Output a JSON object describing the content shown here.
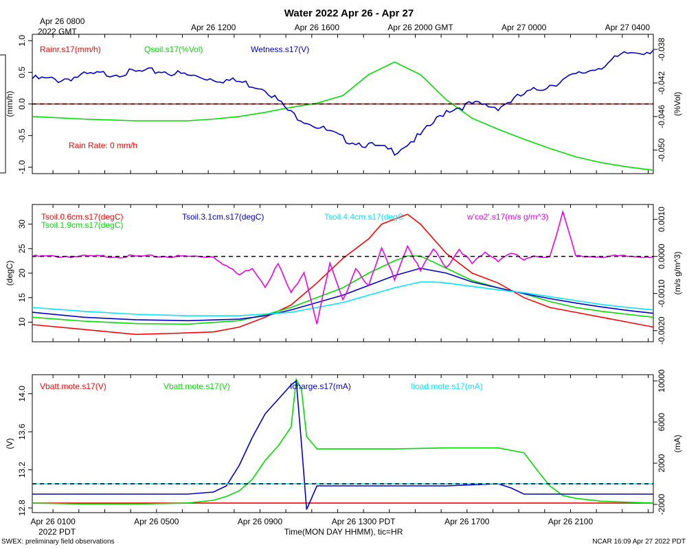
{
  "title": "Water 2022 Apr 26 - Apr 27",
  "footer_left": "SWEX: preliminary field observations",
  "footer_right": "NCAR 16:09 Apr 27 2022 PDT",
  "bottom_xlabel": "Time(MON DAY HHMM), tic=HR",
  "top_ticks": [
    {
      "t": 0.0,
      "label": "Apr 26 0800"
    },
    {
      "t": 4.0,
      "label": "Apr 26 1200"
    },
    {
      "t": 8.0,
      "label": "Apr 26 1600"
    },
    {
      "t": 12.0,
      "label": "Apr 26 2000 GMT"
    },
    {
      "t": 16.0,
      "label": "Apr 27 0000"
    },
    {
      "t": 20.0,
      "label": "Apr 27 0400"
    }
  ],
  "top_sublabel": "2022 GMT",
  "bottom_ticks": [
    {
      "t": 1.0,
      "label": "Apr 26 0100"
    },
    {
      "t": 5.0,
      "label": "Apr 26 0500"
    },
    {
      "t": 9.0,
      "label": "Apr 26 0900"
    },
    {
      "t": 13.0,
      "label": "Apr 26 1300 PDT"
    },
    {
      "t": 17.0,
      "label": "Apr 26 1700"
    },
    {
      "t": 21.0,
      "label": "Apr 26 2100"
    }
  ],
  "bottom_sublabel": "2022 PDT",
  "colors": {
    "red": "#ff0000",
    "green": "#00dd00",
    "blue": "#0000cc",
    "cyan": "#00e5ff",
    "magenta": "#ee00ee"
  },
  "chart_data": [
    {
      "type": "line",
      "panel": "water",
      "x_unit": "hours since Apr 26 0000 PDT",
      "xlim": [
        0.0,
        24.0
      ],
      "left_axis": {
        "label": "(mm/h)",
        "range": [
          -1.1,
          1.1
        ],
        "ticks": [
          1.0,
          0.5,
          0.0,
          -0.5,
          -1.0
        ],
        "tick_labels": [
          "1.0",
          "0.5",
          "0.0",
          "-0.5",
          "-1.0"
        ]
      },
      "right_axis": {
        "label": "(%Vol)",
        "range": [
          -0.0528,
          -0.0362
        ],
        "ticks": [
          -0.038,
          -0.042,
          -0.046,
          -0.05
        ],
        "tick_labels": [
          "-0.038",
          "-0.042",
          "-0.046",
          "-0.050"
        ]
      },
      "zero_line": 0.0,
      "annotation": "Rain Rate: 0 mm/h",
      "series": [
        {
          "name": "Rainr.s17(mm/h)",
          "color": "red",
          "axis": "left",
          "x": [
            0,
            24
          ],
          "y": [
            0,
            0
          ]
        },
        {
          "name": "Qsoil.s17(%Vol)",
          "color": "green",
          "axis": "right",
          "x": [
            0,
            2,
            4,
            6,
            7,
            8,
            9,
            10,
            11,
            12,
            13,
            14,
            15,
            16,
            17,
            18,
            19,
            20,
            21,
            22,
            23,
            24
          ],
          "y": [
            -0.046,
            -0.0463,
            -0.0465,
            -0.0465,
            -0.0463,
            -0.046,
            -0.0455,
            -0.0449,
            -0.0444,
            -0.0435,
            -0.041,
            -0.0395,
            -0.041,
            -0.044,
            -0.0462,
            -0.0475,
            -0.0487,
            -0.0498,
            -0.0508,
            -0.0515,
            -0.052,
            -0.0524
          ]
        },
        {
          "name": "Wetness.s17(V)",
          "color": "blue",
          "axis": "left",
          "x": [
            0,
            1,
            2,
            3,
            4,
            5,
            6,
            7,
            8,
            9,
            10,
            11,
            12,
            13,
            14,
            15,
            16,
            17,
            18,
            19,
            20,
            21,
            22,
            23,
            24
          ],
          "y": [
            0.4,
            0.38,
            0.45,
            0.48,
            0.5,
            0.52,
            0.45,
            0.4,
            0.35,
            0.25,
            -0.15,
            -0.35,
            -0.55,
            -0.65,
            -0.75,
            -0.5,
            -0.1,
            0.0,
            -0.05,
            0.15,
            0.3,
            0.45,
            0.6,
            0.8,
            0.85
          ]
        }
      ]
    },
    {
      "type": "line",
      "panel": "soil temperature",
      "x_unit": "hours since Apr 26 0000 PDT",
      "xlim": [
        0.0,
        24.0
      ],
      "left_axis": {
        "label": "(degC)",
        "range": [
          6.0,
          34.0
        ],
        "ticks": [
          30,
          25,
          20,
          15,
          10
        ],
        "tick_labels": [
          "30",
          "25",
          "20",
          "15",
          "10"
        ]
      },
      "right_axis": {
        "label": "(m/s g/m^3)",
        "range": [
          -0.0023,
          0.0014
        ],
        "ticks": [
          0.001,
          0.0,
          -0.001,
          -0.002
        ],
        "tick_labels": [
          "0.0010",
          "0.0000",
          "-0.0010",
          "-0.0020"
        ]
      },
      "zero_line": 0.0,
      "series": [
        {
          "name": "Tsoil.0.6cm.s17(degC)",
          "color": "red",
          "axis": "left",
          "x": [
            0,
            2,
            4,
            6,
            7,
            8,
            9,
            10,
            11,
            12,
            13,
            13.5,
            14,
            14.5,
            15,
            16,
            17,
            18,
            19,
            20,
            21,
            22,
            23,
            24
          ],
          "y": [
            9.5,
            8.5,
            7.5,
            7.8,
            8.0,
            9.0,
            11.0,
            13.5,
            18.0,
            23.0,
            27.0,
            30.0,
            31.0,
            32.0,
            30.0,
            24.0,
            20.0,
            18.0,
            15.0,
            13.0,
            12.0,
            11.0,
            10.0,
            9.0
          ]
        },
        {
          "name": "Tsoil.1.9cm.s17(degC)",
          "color": "green",
          "axis": "left",
          "x": [
            0,
            2,
            4,
            6,
            8,
            9,
            10,
            12,
            13,
            14,
            14.5,
            15,
            16,
            17,
            18,
            19,
            20,
            21,
            22,
            23,
            24
          ],
          "y": [
            11.0,
            10.2,
            9.7,
            9.6,
            10.3,
            11.5,
            13.0,
            17.0,
            20.0,
            22.5,
            23.5,
            23.5,
            21.0,
            18.5,
            17.0,
            15.8,
            14.2,
            13.0,
            12.2,
            11.6,
            11.0
          ]
        },
        {
          "name": "Tsoil.3.1cm.s17(degC)",
          "color": "blue",
          "axis": "left",
          "x": [
            0,
            2,
            4,
            6,
            8,
            9,
            10,
            12,
            13,
            14,
            15,
            16,
            17,
            18,
            19,
            20,
            21,
            22,
            23,
            24
          ],
          "y": [
            12.0,
            11.0,
            10.5,
            10.3,
            10.6,
            11.3,
            12.5,
            15.5,
            17.5,
            19.5,
            21.0,
            20.0,
            18.2,
            17.0,
            15.8,
            14.8,
            13.9,
            13.1,
            12.4,
            11.8
          ]
        },
        {
          "name": "Tsoil.4.4cm.s17(degC",
          "color": "cyan",
          "axis": "left",
          "x": [
            0,
            2,
            4,
            6,
            8,
            10,
            12,
            13,
            14,
            15,
            15.5,
            16,
            17,
            18,
            19,
            20,
            21,
            22,
            23,
            24
          ],
          "y": [
            13.0,
            12.2,
            11.6,
            11.3,
            11.3,
            12.0,
            14.0,
            15.5,
            17.0,
            18.2,
            18.2,
            18.0,
            17.3,
            16.6,
            16.0,
            15.2,
            14.4,
            13.6,
            13.0,
            12.5
          ]
        },
        {
          "name": "w'co2'.s17(m/s g/m^3)",
          "color": "magenta",
          "axis": "right",
          "x": [
            0,
            1,
            2,
            3,
            4,
            5,
            6,
            7,
            8,
            8.5,
            9,
            9.5,
            10,
            10.5,
            11,
            11.5,
            12,
            12.5,
            13,
            13.5,
            14,
            14.5,
            15,
            15.5,
            16,
            16.5,
            17,
            17.5,
            18,
            18.5,
            19,
            19.5,
            20,
            20.5,
            21,
            22,
            23,
            24
          ],
          "y": [
            0.0,
            0.0,
            0.0,
            0.0,
            0.0,
            0.0,
            0.0,
            0.0,
            -0.0005,
            -0.0003,
            -0.0008,
            -0.0002,
            -0.001,
            -0.0004,
            -0.0018,
            -0.0002,
            -0.0012,
            -0.0003,
            -0.0008,
            0.0002,
            -0.0006,
            0.0003,
            -0.0004,
            0.0002,
            -0.0003,
            0.0002,
            -0.0002,
            0.0001,
            -0.0001,
            0.0001,
            -0.0001,
            0.0,
            0.0,
            0.0012,
            0.0,
            0.0,
            0.0,
            0.0
          ]
        }
      ]
    },
    {
      "type": "line",
      "panel": "power",
      "x_unit": "hours since Apr 26 0000 PDT",
      "xlim": [
        0.0,
        24.0
      ],
      "left_axis": {
        "label": "(V)",
        "range": [
          12.75,
          14.2
        ],
        "ticks": [
          14.0,
          13.6,
          13.2,
          12.8
        ],
        "tick_labels": [
          "14.0",
          "13.6",
          "13.2",
          "12.8"
        ]
      },
      "right_axis": {
        "label": "(mA)",
        "range": [
          -2800,
          10600
        ],
        "ticks": [
          10000,
          6000,
          2000,
          -2000
        ],
        "tick_labels": [
          "10000",
          "6000",
          "2000",
          "-2000"
        ]
      },
      "zero_line": 0.0,
      "series": [
        {
          "name": "Vbatt.mote.s17(V)",
          "color": "red",
          "axis": "left",
          "x": [
            0,
            24
          ],
          "y": [
            12.85,
            12.85
          ]
        },
        {
          "name": "Vbatt.mote.s17(V)",
          "color": "green",
          "axis": "left",
          "x": [
            0,
            2,
            4,
            6,
            7,
            7.5,
            8,
            8.5,
            9,
            9.5,
            10,
            10.2,
            10.4,
            10.6,
            11,
            12,
            14,
            16,
            18,
            19,
            19.5,
            20,
            20.5,
            21,
            22,
            23,
            24
          ],
          "y": [
            12.85,
            12.84,
            12.84,
            12.85,
            12.88,
            12.92,
            12.98,
            13.1,
            13.3,
            13.45,
            13.65,
            14.15,
            14.05,
            13.55,
            13.42,
            13.42,
            13.42,
            13.43,
            13.43,
            13.38,
            13.2,
            13.03,
            12.93,
            12.9,
            12.87,
            12.86,
            12.85
          ]
        },
        {
          "name": "Icharge.s17(mA)",
          "color": "blue",
          "axis": "right",
          "x": [
            0,
            2,
            4,
            6,
            7,
            7.5,
            8,
            8.5,
            9,
            9.5,
            10,
            10.2,
            10.4,
            10.6,
            11,
            12,
            14,
            16,
            18,
            18.5,
            19,
            20,
            21,
            22,
            24
          ],
          "y": [
            -1000,
            -1000,
            -1000,
            -1000,
            -800,
            -200,
            1800,
            4500,
            6800,
            8200,
            9600,
            10000,
            4000,
            -2500,
            -200,
            -200,
            -200,
            -200,
            0,
            -400,
            -1000,
            -1000,
            -1000,
            -1000,
            -1000
          ]
        },
        {
          "name": "Iload.mote.s17(mA)",
          "color": "cyan",
          "axis": "right",
          "x": [
            0,
            24
          ],
          "y": [
            0,
            0
          ]
        }
      ]
    }
  ]
}
